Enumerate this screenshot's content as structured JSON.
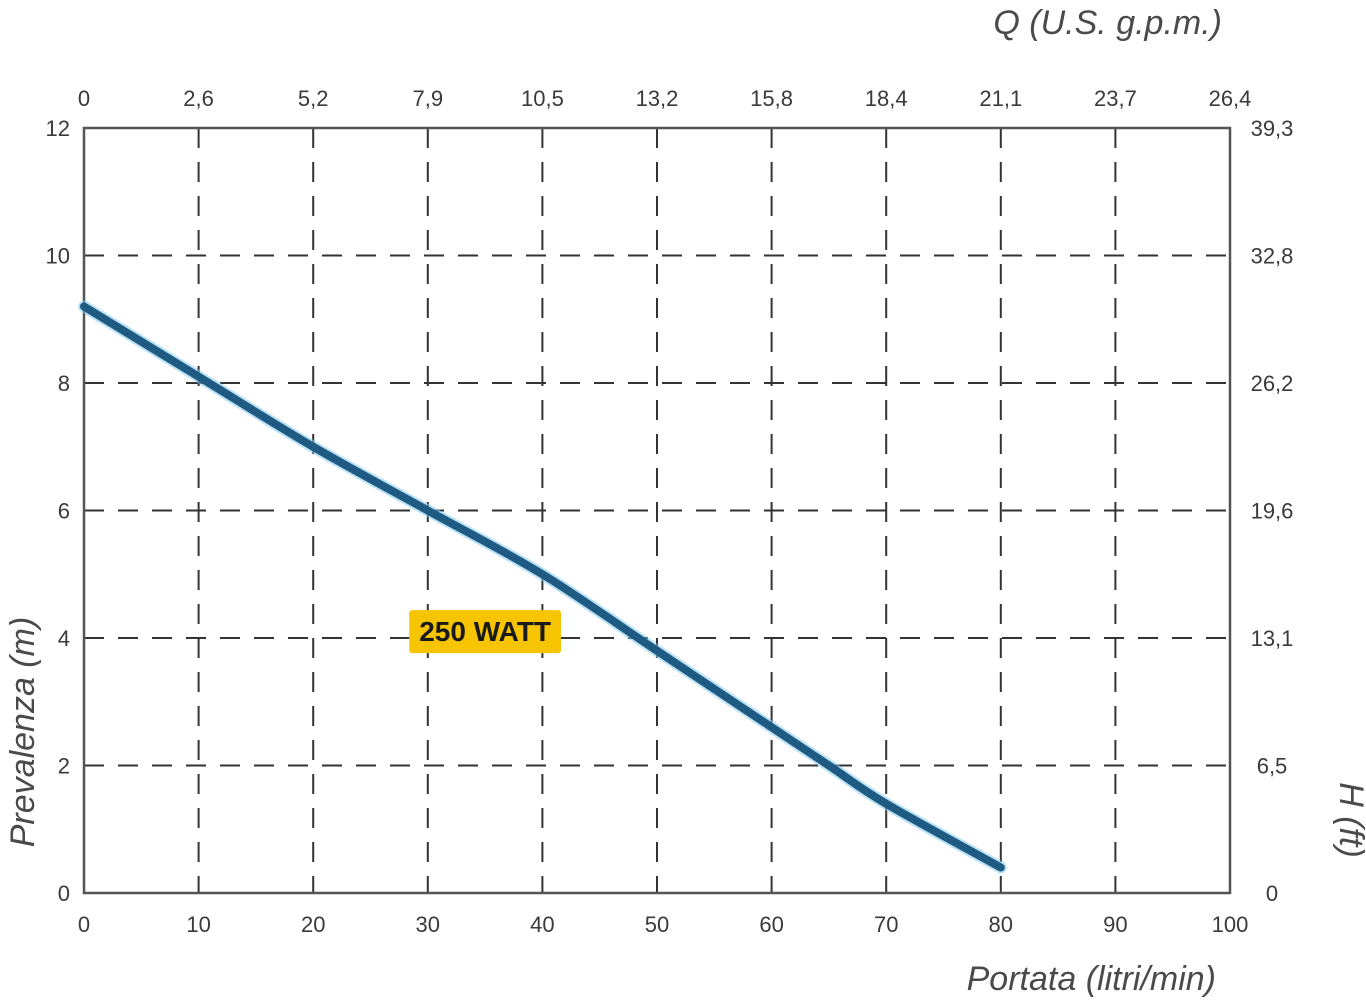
{
  "chart_data": {
    "type": "line",
    "title": "",
    "xlabel": "Portata (litri/min)",
    "ylabel": "Prevalenza (m)",
    "x2label": "Q (U.S. g.p.m.)",
    "y2label": "H (ft)",
    "xlim": [
      0,
      100
    ],
    "ylim": [
      0,
      12
    ],
    "grid": true,
    "x_ticks": [
      "0",
      "10",
      "20",
      "30",
      "40",
      "50",
      "60",
      "70",
      "80",
      "90",
      "100"
    ],
    "y_ticks": [
      "0",
      "2",
      "4",
      "6",
      "8",
      "10",
      "12"
    ],
    "x2_ticks": [
      "0",
      "2,6",
      "5,2",
      "7,9",
      "10,5",
      "13,2",
      "15,8",
      "18,4",
      "21,1",
      "23,7",
      "26,4"
    ],
    "y2_ticks": [
      "0",
      "6,5",
      "13,1",
      "19,6",
      "26,2",
      "32,8",
      "39,3"
    ],
    "series": [
      {
        "name": "250 WATT",
        "color": "#1f5a82",
        "x": [
          0,
          10,
          20,
          30,
          40,
          50,
          60,
          65,
          70,
          80
        ],
        "y": [
          9.2,
          8.1,
          7.0,
          6.0,
          5.0,
          3.8,
          2.6,
          2.0,
          1.4,
          0.4
        ]
      }
    ],
    "annotations": [
      {
        "text": "250 WATT",
        "x": 35,
        "y": 4.1,
        "background": "#f6c400"
      }
    ]
  }
}
